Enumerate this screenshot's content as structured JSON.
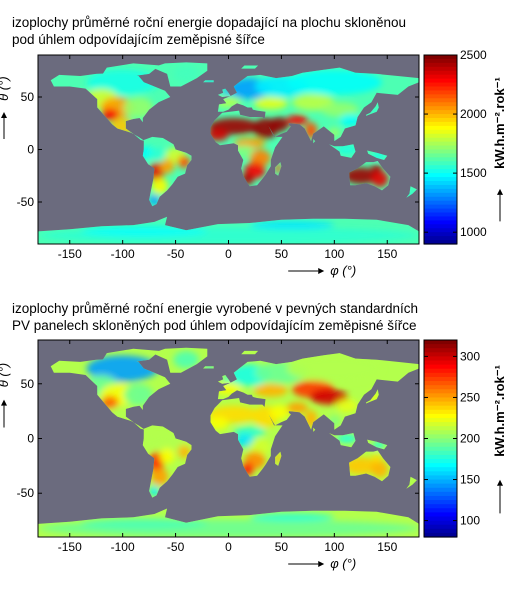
{
  "chart_data": [
    {
      "type": "heatmap",
      "title_line1": "izoplochy průměrné roční energie dopadající na plochu skloněnou",
      "title_line2": "pod úhlem odpovídajícím zeměpisné šířce",
      "xlabel": "φ (°)",
      "ylabel": "θ (°)",
      "xlim": [
        -180,
        180
      ],
      "ylim": [
        -90,
        90
      ],
      "xticks": [
        -150,
        -100,
        -50,
        0,
        50,
        100,
        150
      ],
      "yticks": [
        50,
        0,
        -50
      ],
      "colorbar": {
        "label": "kW.h.m⁻².rok⁻¹",
        "range": [
          900,
          2500
        ],
        "ticks": [
          1000,
          1500,
          2000,
          2500
        ]
      },
      "background_color": "#6b6b7e"
    },
    {
      "type": "heatmap",
      "title_line1": "izoplochy průměrné roční energie vyrobené v pevných standardních",
      "title_line2": "PV panelech skloněných pod úhlem odpovídajícím zeměpisné šířce",
      "xlabel": "φ (°)",
      "ylabel": "θ (°)",
      "xlim": [
        -180,
        180
      ],
      "ylim": [
        -90,
        90
      ],
      "xticks": [
        -150,
        -100,
        -50,
        0,
        50,
        100,
        150
      ],
      "yticks": [
        50,
        0,
        -50
      ],
      "colorbar": {
        "label": "kW.h.m⁻².rok⁻¹",
        "range": [
          80,
          320
        ],
        "ticks": [
          100,
          150,
          200,
          250,
          300
        ]
      },
      "background_color": "#6b6b7e"
    }
  ]
}
